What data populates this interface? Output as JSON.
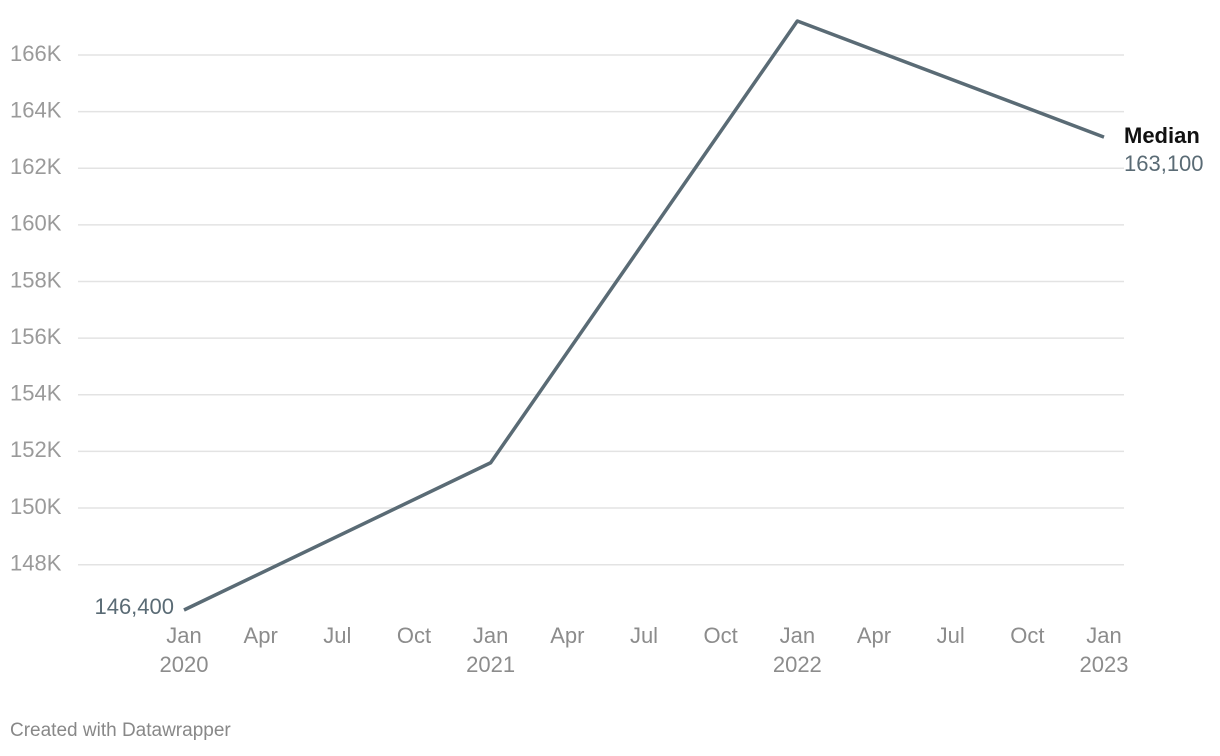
{
  "chart_data": {
    "type": "line",
    "x": [
      "2020-01",
      "2021-01",
      "2022-01",
      "2023-01"
    ],
    "series": [
      {
        "name": "Median",
        "color": "#5a6b75",
        "values": [
          146400,
          151600,
          167200,
          163100
        ],
        "value_labels": [
          "146,400",
          null,
          null,
          "163,100"
        ]
      }
    ],
    "xlim": [
      "2020-01",
      "2023-01"
    ],
    "xticks": [
      {
        "value": "2020-01",
        "label": "Jan\n2020"
      },
      {
        "value": "2020-04",
        "label": "Apr"
      },
      {
        "value": "2020-07",
        "label": "Jul"
      },
      {
        "value": "2020-10",
        "label": "Oct"
      },
      {
        "value": "2021-01",
        "label": "Jan\n2021"
      },
      {
        "value": "2021-04",
        "label": "Apr"
      },
      {
        "value": "2021-07",
        "label": "Jul"
      },
      {
        "value": "2021-10",
        "label": "Oct"
      },
      {
        "value": "2022-01",
        "label": "Jan\n2022"
      },
      {
        "value": "2022-04",
        "label": "Apr"
      },
      {
        "value": "2022-07",
        "label": "Jul"
      },
      {
        "value": "2022-10",
        "label": "Oct"
      },
      {
        "value": "2023-01",
        "label": "Jan\n2023"
      }
    ],
    "ylim": [
      146400,
      167200
    ],
    "yticks": [
      {
        "value": 148000,
        "label": "148K"
      },
      {
        "value": 150000,
        "label": "150K"
      },
      {
        "value": 152000,
        "label": "152K"
      },
      {
        "value": 154000,
        "label": "154K"
      },
      {
        "value": 156000,
        "label": "156K"
      },
      {
        "value": 158000,
        "label": "158K"
      },
      {
        "value": 160000,
        "label": "160K"
      },
      {
        "value": 162000,
        "label": "162K"
      },
      {
        "value": 164000,
        "label": "164K"
      },
      {
        "value": 166000,
        "label": "166K"
      }
    ],
    "grid": true,
    "footer": "Created with Datawrapper"
  }
}
